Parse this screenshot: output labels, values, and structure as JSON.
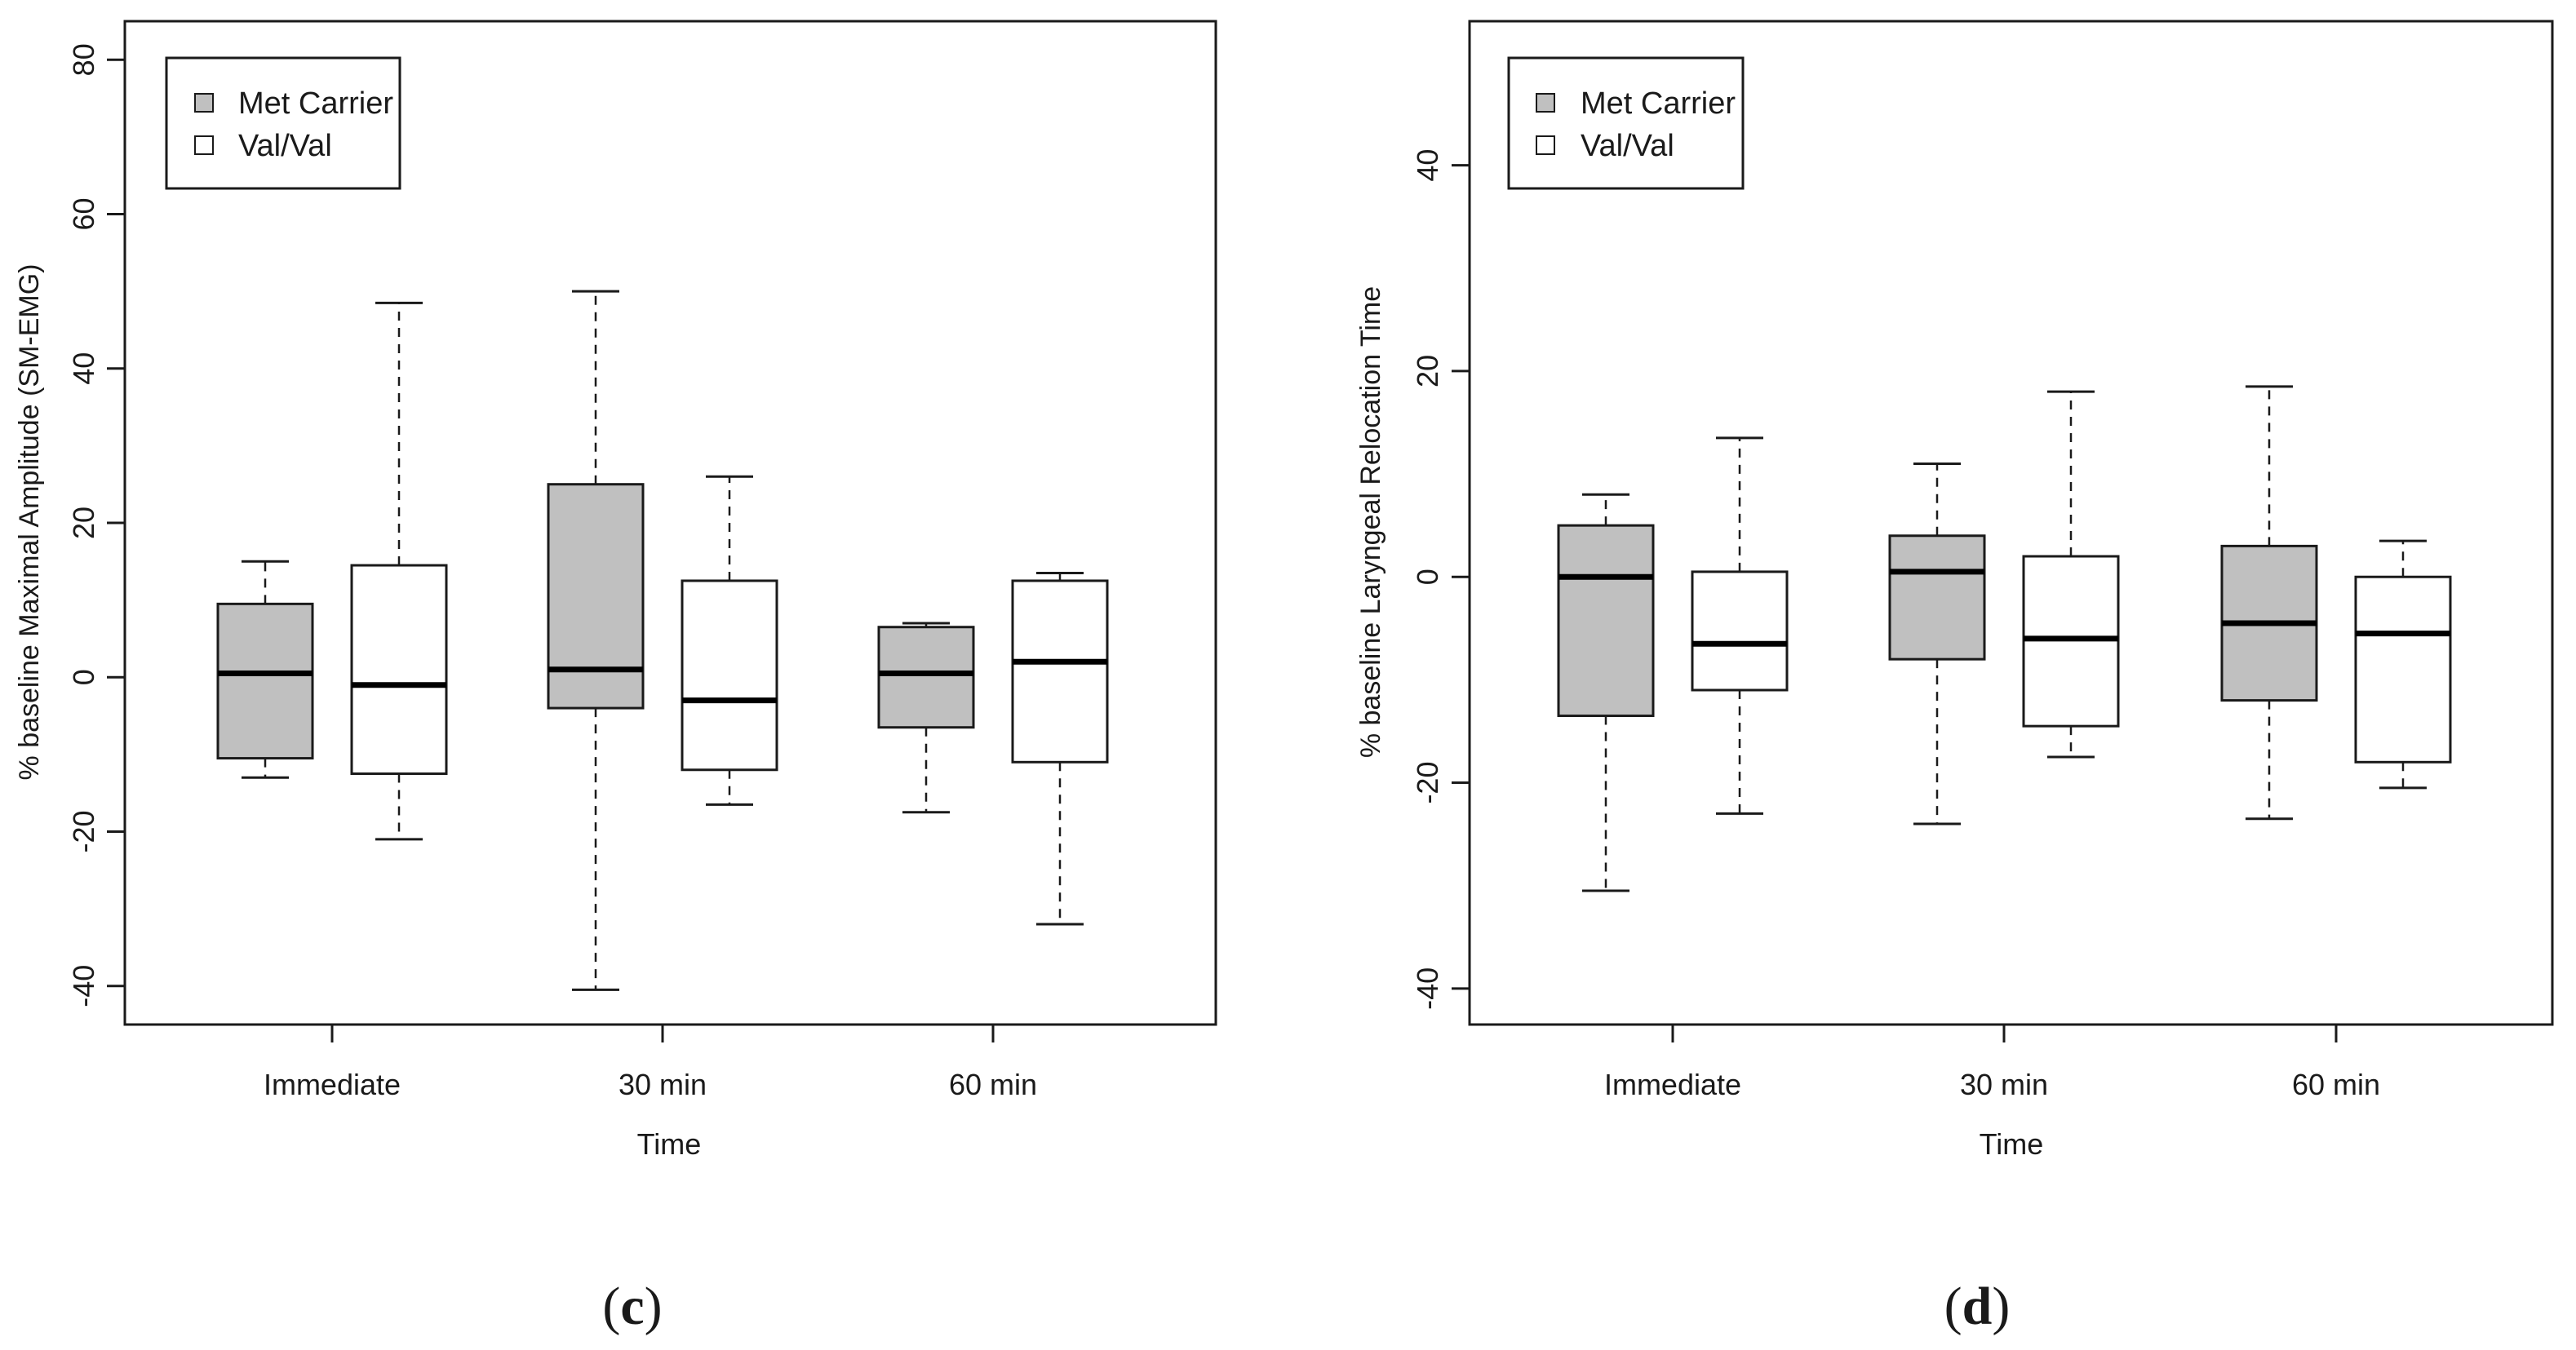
{
  "chart_data": [
    {
      "type": "boxplot",
      "panel_label": "c",
      "title": "",
      "xlabel": "Time",
      "ylabel": "% baseline Maximal Amplitude (SM-EMG)",
      "ylim": [
        -45,
        85
      ],
      "yticks": [
        -40,
        -20,
        0,
        20,
        40,
        60,
        80
      ],
      "ytick_labels": [
        "-40",
        "-20",
        "0",
        "20",
        "40",
        "60",
        "80"
      ],
      "categories": [
        "Immediate",
        "30 min",
        "60 min"
      ],
      "grid": false,
      "legend": {
        "placement": "top-left",
        "entries": [
          "Met Carrier",
          "Val/Val"
        ]
      },
      "series": [
        {
          "name": "Met Carrier",
          "color": "#c0c0c0",
          "boxes": [
            {
              "min": -13,
              "q1": -10.5,
              "median": 0.5,
              "q3": 9.5,
              "max": 15
            },
            {
              "min": -40.5,
              "q1": -4,
              "median": 1,
              "q3": 25,
              "max": 50
            },
            {
              "min": -17.5,
              "q1": -6.5,
              "median": 0.5,
              "q3": 6.5,
              "max": 7
            }
          ]
        },
        {
          "name": "Val/Val",
          "color": "#ffffff",
          "boxes": [
            {
              "min": -21,
              "q1": -12.5,
              "median": -1,
              "q3": 14.5,
              "max": 48.5
            },
            {
              "min": -16.5,
              "q1": -12,
              "median": -3,
              "q3": 12.5,
              "max": 26
            },
            {
              "min": -32,
              "q1": -11,
              "median": 2,
              "q3": 12.5,
              "max": 13.5
            }
          ]
        }
      ]
    },
    {
      "type": "boxplot",
      "panel_label": "d",
      "title": "",
      "xlabel": "Time",
      "ylabel": "% baseline Laryngeal Relocation Time",
      "ylim": [
        -43.5,
        54
      ],
      "yticks": [
        -40,
        -20,
        0,
        20,
        40
      ],
      "ytick_labels": [
        "-40",
        "-20",
        "0",
        "20",
        "40"
      ],
      "categories": [
        "Immediate",
        "30 min",
        "60 min"
      ],
      "grid": false,
      "legend": {
        "placement": "top-left",
        "entries": [
          "Met Carrier",
          "Val/Val"
        ]
      },
      "series": [
        {
          "name": "Met Carrier",
          "color": "#c0c0c0",
          "boxes": [
            {
              "min": -30.5,
              "q1": -13.5,
              "median": 0,
              "q3": 5,
              "max": 8
            },
            {
              "min": -24,
              "q1": -8,
              "median": 0.5,
              "q3": 4,
              "max": 11
            },
            {
              "min": -23.5,
              "q1": -12,
              "median": -4.5,
              "q3": 3,
              "max": 18.5
            }
          ]
        },
        {
          "name": "Val/Val",
          "color": "#ffffff",
          "boxes": [
            {
              "min": -23,
              "q1": -11,
              "median": -6.5,
              "q3": 0.5,
              "max": 13.5
            },
            {
              "min": -17.5,
              "q1": -14.5,
              "median": -6,
              "q3": 2,
              "max": 18
            },
            {
              "min": -20.5,
              "q1": -18,
              "median": -5.5,
              "q3": 0,
              "max": 3.5
            }
          ]
        }
      ]
    }
  ]
}
